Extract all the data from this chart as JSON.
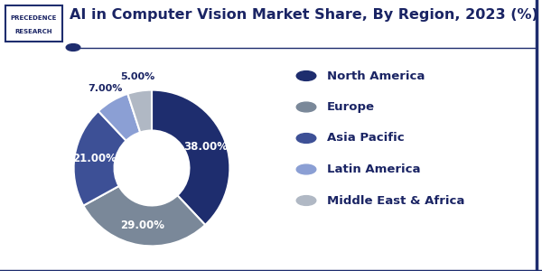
{
  "title": "AI in Computer Vision Market Share, By Region, 2023 (%)",
  "labels": [
    "North America",
    "Europe",
    "Asia Pacific",
    "Latin America",
    "Middle East & Africa"
  ],
  "values": [
    38,
    29,
    21,
    7,
    5
  ],
  "colors": [
    "#1e2d6e",
    "#7a8899",
    "#3d5096",
    "#8b9fd4",
    "#b0b8c4"
  ],
  "label_texts": [
    "38.00%",
    "29.00%",
    "21.00%",
    "7.00%",
    "5.00%"
  ],
  "bg_color": "#ffffff",
  "title_color": "#1a2464",
  "title_fontsize": 11.5,
  "legend_fontsize": 9.5,
  "label_fontsize": 8.5,
  "border_color": "#1e2d6e",
  "logo_border_color": "#1e2d6e"
}
